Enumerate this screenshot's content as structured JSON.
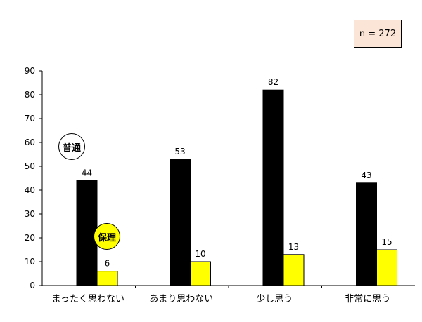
{
  "annotation": {
    "sample_size": "n = 272"
  },
  "series_labels": {
    "general": "普通",
    "hori": "保理"
  },
  "colors": {
    "general": "#000000",
    "hori": "#ffff00",
    "box": "#fbe5d6"
  },
  "chart_data": {
    "type": "bar",
    "categories": [
      "まったく思わない",
      "あまり思わない",
      "少し思う",
      "非常に思う"
    ],
    "series": [
      {
        "name": "普通",
        "values": [
          44,
          53,
          82,
          43
        ]
      },
      {
        "name": "保理",
        "values": [
          6,
          10,
          13,
          15
        ]
      }
    ],
    "ylim": [
      0,
      90
    ],
    "yticks": [
      0,
      10,
      20,
      30,
      40,
      50,
      60,
      70,
      80,
      90
    ],
    "grid": false
  }
}
